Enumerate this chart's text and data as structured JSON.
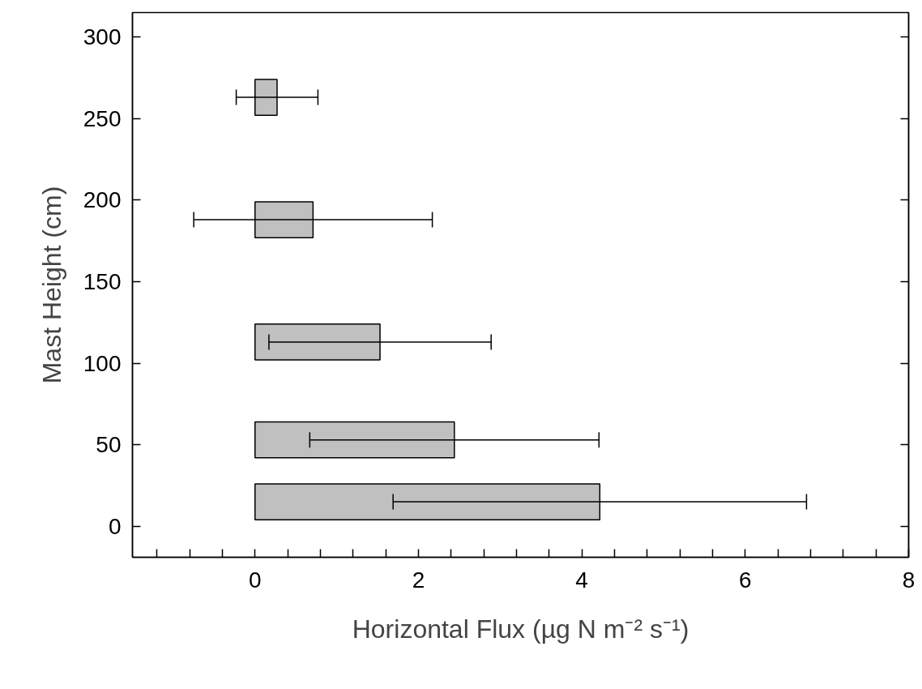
{
  "chart_data": {
    "type": "bar",
    "orientation": "horizontal",
    "x": [
      15,
      53,
      113,
      188,
      263
    ],
    "values": [
      4.22,
      2.44,
      1.53,
      0.71,
      0.27
    ],
    "errors": [
      2.53,
      1.77,
      1.36,
      1.46,
      0.5
    ],
    "color": "#c0c0c0",
    "xlabel": "Horizontal Flux (µg N m⁻² s⁻¹)",
    "ylabel": "Mast Height (cm)",
    "xlim": [
      -1.5,
      8
    ],
    "ylim": [
      -19,
      315
    ],
    "xticks": [
      {
        "value": -1.2,
        "label": null
      },
      {
        "value": -0.8,
        "label": null
      },
      {
        "value": -0.4,
        "label": null
      },
      0,
      {
        "value": 0.4,
        "label": null
      },
      {
        "value": 0.8,
        "label": null
      },
      {
        "value": 1.2,
        "label": null
      },
      {
        "value": 1.6,
        "label": null
      },
      2,
      {
        "value": 2.4,
        "label": null
      },
      {
        "value": 2.8,
        "label": null
      },
      {
        "value": 3.2,
        "label": null
      },
      {
        "value": 3.6,
        "label": null
      },
      4,
      {
        "value": 4.4,
        "label": null
      },
      {
        "value": 4.8,
        "label": null
      },
      {
        "value": 5.2,
        "label": null
      },
      {
        "value": 5.6,
        "label": null
      },
      6,
      {
        "value": 6.4,
        "label": null
      },
      {
        "value": 6.8,
        "label": null
      },
      {
        "value": 7.2,
        "label": null
      },
      {
        "value": 7.6,
        "label": null
      },
      8
    ],
    "yticks": [
      0,
      50,
      100,
      150,
      200,
      250,
      300
    ],
    "grid": false
  }
}
